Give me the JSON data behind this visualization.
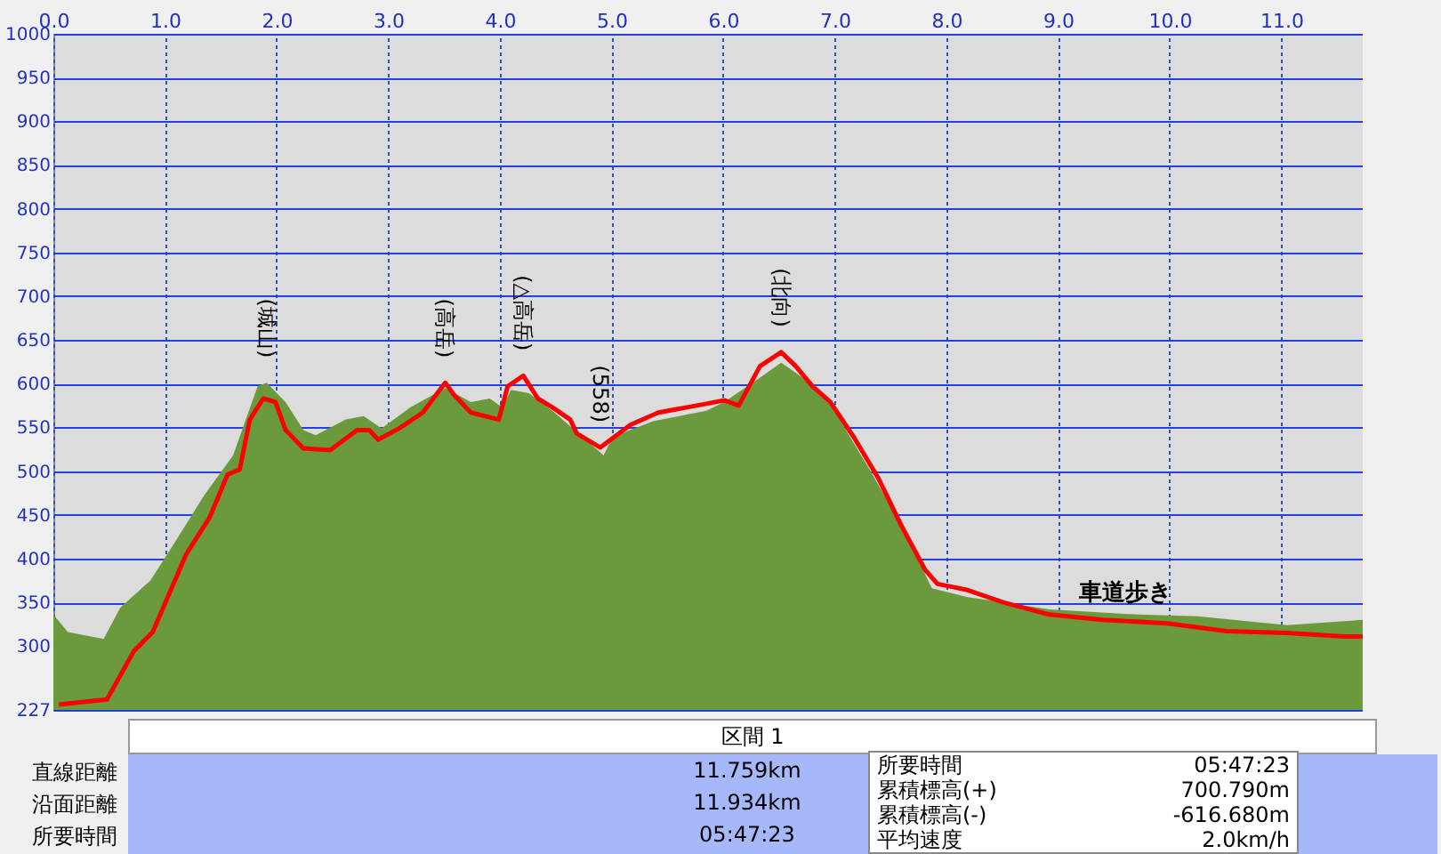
{
  "chart_data": {
    "type": "area",
    "xlim": [
      0,
      11.73
    ],
    "xticks": [
      {
        "value": 0,
        "label": "0.0"
      },
      {
        "value": 1,
        "label": "1.0"
      },
      {
        "value": 2,
        "label": "2.0"
      },
      {
        "value": 3,
        "label": "3.0"
      },
      {
        "value": 4,
        "label": "4.0"
      },
      {
        "value": 5,
        "label": "5.0"
      },
      {
        "value": 6,
        "label": "6.0"
      },
      {
        "value": 7,
        "label": "7.0"
      },
      {
        "value": 8,
        "label": "8.0"
      },
      {
        "value": 9,
        "label": "9.0"
      },
      {
        "value": 10,
        "label": "10.0"
      },
      {
        "value": 11,
        "label": "11.0"
      }
    ],
    "ylim": [
      227,
      1000
    ],
    "yticks": [
      227,
      300,
      350,
      400,
      450,
      500,
      550,
      600,
      650,
      700,
      750,
      800,
      850,
      900,
      950,
      1000
    ],
    "grid": true,
    "series": [
      {
        "color": "#6a9a3c",
        "x": [
          0,
          0.13,
          0.45,
          0.6,
          0.87,
          1.08,
          1.35,
          1.61,
          1.83,
          1.91,
          2.08,
          2.24,
          2.35,
          2.62,
          2.78,
          2.94,
          3.2,
          3.51,
          3.74,
          3.91,
          4.02,
          4.1,
          4.26,
          4.47,
          4.74,
          4.93,
          5.01,
          5.37,
          5.85,
          6.01,
          6.33,
          6.52,
          6.69,
          6.96,
          7.33,
          7.6,
          7.87,
          8.19,
          8.51,
          8.92,
          9.71,
          10.25,
          11.05,
          11.73
        ],
        "values": [
          336,
          316,
          308,
          344,
          375,
          417,
          472,
          518,
          597,
          601,
          579,
          547,
          541,
          559,
          563,
          549,
          573,
          595,
          579,
          583,
          573,
          593,
          589,
          569,
          539,
          518,
          539,
          557,
          569,
          579,
          607,
          624,
          609,
          577,
          498,
          437,
          366,
          356,
          350,
          342,
          336,
          334,
          324,
          330
        ]
      },
      {
        "type": "line",
        "color": "#ff0000",
        "x": [
          0.05,
          0.48,
          0.72,
          0.89,
          1.19,
          1.4,
          1.56,
          1.67,
          1.76,
          1.88,
          1.99,
          2.08,
          2.24,
          2.48,
          2.72,
          2.83,
          2.91,
          3.1,
          3.31,
          3.51,
          3.59,
          3.74,
          3.99,
          4.07,
          4.21,
          4.34,
          4.47,
          4.63,
          4.69,
          4.9,
          5.17,
          5.42,
          5.85,
          6.01,
          6.14,
          6.33,
          6.52,
          6.65,
          6.8,
          6.96,
          7.17,
          7.39,
          7.6,
          7.81,
          7.92,
          8.19,
          8.51,
          8.92,
          9.4,
          9.98,
          10.51,
          11.05,
          11.57,
          11.73
        ],
        "values": [
          233,
          239,
          294,
          316,
          405,
          447,
          496,
          502,
          559,
          583,
          579,
          547,
          526,
          524,
          547,
          547,
          536,
          549,
          567,
          601,
          587,
          567,
          559,
          597,
          609,
          583,
          573,
          559,
          543,
          527,
          553,
          567,
          577,
          581,
          575,
          620,
          636,
          620,
          597,
          579,
          539,
          492,
          437,
          387,
          371,
          364,
          350,
          336,
          330,
          326,
          317,
          315,
          311,
          311
        ]
      }
    ],
    "annotations": [
      {
        "text": "(城山)",
        "x": 1.91,
        "y": 601
      },
      {
        "text": "(高岳)",
        "x": 3.51,
        "y": 601
      },
      {
        "text": "(△高岳)",
        "x": 4.21,
        "y": 609
      },
      {
        "text": "(558)",
        "x": 4.9,
        "y": 527
      },
      {
        "text": "(北向)",
        "x": 6.52,
        "y": 636
      },
      {
        "text": "車道歩き",
        "x": 9.6,
        "y": 331
      },
      "区間 1",
      "直線距離",
      "沿面距離",
      "所要時間",
      "11.759km",
      "11.934km",
      "05:47:23",
      "所要時間",
      "05:47:23",
      "累積標高(+)",
      "700.790m",
      "累積標高(-)",
      "-616.680m",
      "平均速度",
      "2.0km/h"
    ]
  }
}
